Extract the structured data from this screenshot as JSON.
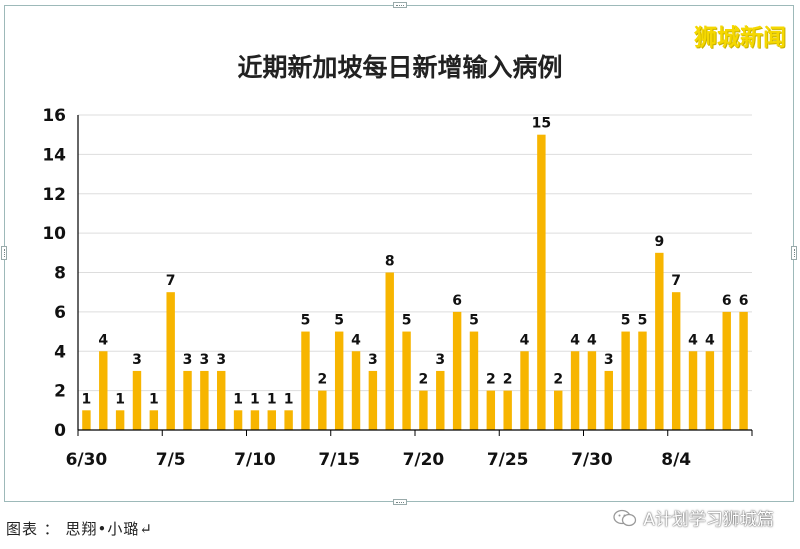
{
  "watermark": "狮城新闻",
  "caption": "图表 ： 思翔•小璐↵",
  "source_badge": "A计划学习狮城篇",
  "colors": {
    "bar": "#F7B500",
    "grid": "#dddddd",
    "axis": "#000000"
  },
  "icons": {
    "wechat": "wechat-icon"
  },
  "chart_data": {
    "type": "bar",
    "title": "近期新加坡每日新增输入病例",
    "xlabel": "",
    "ylabel": "",
    "ylim": [
      0,
      16
    ],
    "yticks": [
      0,
      2,
      4,
      6,
      8,
      10,
      12,
      14,
      16
    ],
    "grid": true,
    "categories": [
      "6/30",
      "7/1",
      "7/2",
      "7/3",
      "7/4",
      "7/5",
      "7/6",
      "7/7",
      "7/8",
      "7/9",
      "7/10",
      "7/11",
      "7/12",
      "7/13",
      "7/14",
      "7/15",
      "7/16",
      "7/17",
      "7/18",
      "7/19",
      "7/20",
      "7/21",
      "7/22",
      "7/23",
      "7/24",
      "7/25",
      "7/26",
      "7/27",
      "7/28",
      "7/29",
      "7/30",
      "7/31",
      "8/1",
      "8/2",
      "8/3",
      "8/4",
      "8/5",
      "8/6",
      "8/7",
      "8/8"
    ],
    "values": [
      1,
      4,
      1,
      3,
      1,
      7,
      3,
      3,
      3,
      1,
      1,
      1,
      1,
      5,
      2,
      5,
      4,
      3,
      8,
      5,
      2,
      3,
      6,
      5,
      2,
      2,
      4,
      15,
      2,
      4,
      4,
      3,
      5,
      5,
      9,
      7,
      4,
      4,
      6,
      6
    ],
    "xtick_labels": [
      {
        "label": "6/30",
        "index": 0
      },
      {
        "label": "7/5",
        "index": 5
      },
      {
        "label": "7/10",
        "index": 10
      },
      {
        "label": "7/15",
        "index": 15
      },
      {
        "label": "7/20",
        "index": 20
      },
      {
        "label": "7/25",
        "index": 25
      },
      {
        "label": "7/30",
        "index": 30
      },
      {
        "label": "8/4",
        "index": 35
      }
    ]
  }
}
